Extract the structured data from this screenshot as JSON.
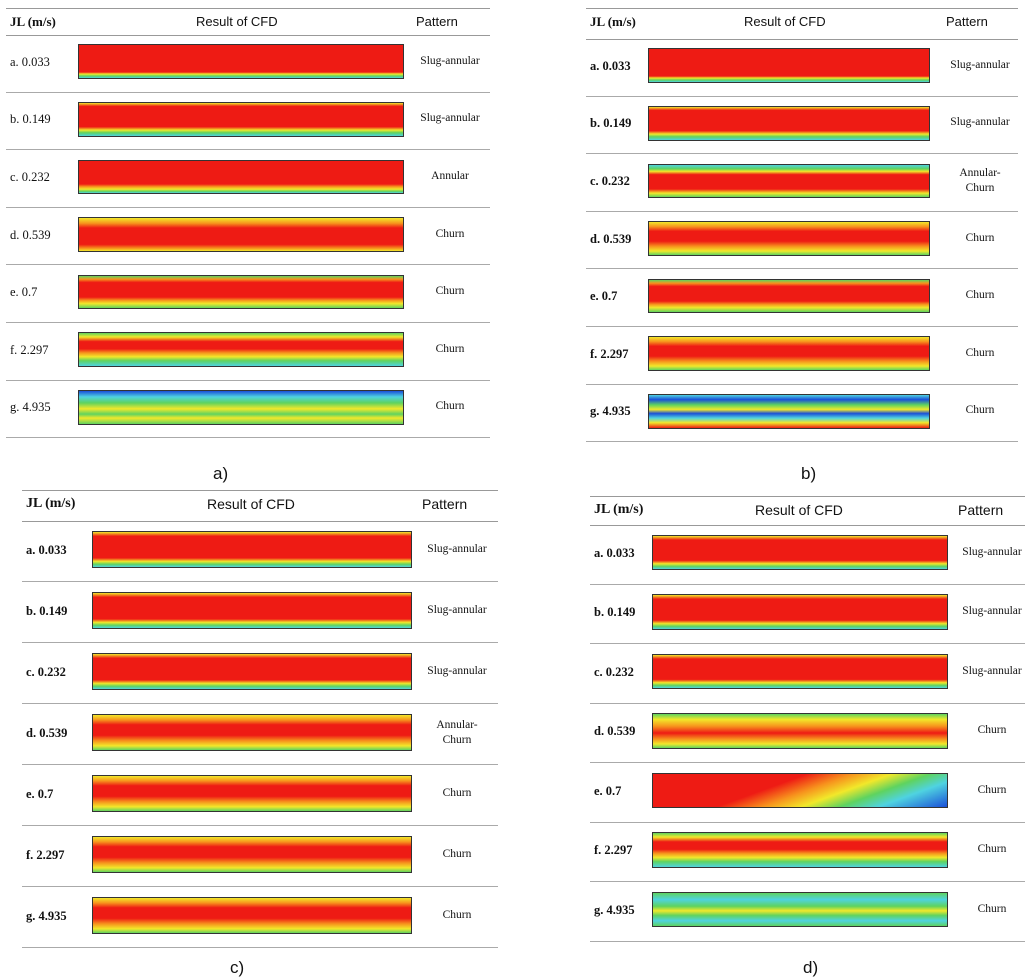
{
  "colors": {
    "red": "#ee1b14",
    "orange": "#f7941d",
    "yellow": "#f2e82a",
    "green": "#5fd35f",
    "cyan": "#4fd3e0",
    "blue": "#1a4fd8"
  },
  "panels": [
    {
      "id": "a",
      "header": {
        "jl": "JL (m/s)",
        "result": "Result of CFD",
        "pattern": "Pattern"
      },
      "caption": "a)",
      "rows": [
        {
          "label": "a. 0.033",
          "pattern": "Slug-annular",
          "colormap": "slug-light"
        },
        {
          "label": "b. 0.149",
          "pattern": "Slug-annular",
          "colormap": "slug-edges"
        },
        {
          "label": "c. 0.232",
          "pattern": "Annular",
          "colormap": "annular"
        },
        {
          "label": "d. 0.539",
          "pattern": "Churn",
          "colormap": "churn-yellow-top"
        },
        {
          "label": "e. 0.7",
          "pattern": "Churn",
          "colormap": "churn-thin"
        },
        {
          "label": "f. 2.297",
          "pattern": "Churn",
          "colormap": "churn-green"
        },
        {
          "label": "g. 4.935",
          "pattern": "Churn",
          "colormap": "churn-blue"
        }
      ]
    },
    {
      "id": "b",
      "header": {
        "jl": "JL (m/s)",
        "result": "Result of CFD",
        "pattern": "Pattern"
      },
      "caption": "b)",
      "rows": [
        {
          "label": "a. 0.033",
          "pattern": "Slug-annular",
          "colormap": "slug-light"
        },
        {
          "label": "b. 0.149",
          "pattern": "Slug-annular",
          "colormap": "slug-edges"
        },
        {
          "label": "c. 0.232",
          "pattern": "Annular-\nChurn",
          "colormap": "annular-churn"
        },
        {
          "label": "d. 0.539",
          "pattern": "Churn",
          "colormap": "churn-orange"
        },
        {
          "label": "e. 0.7",
          "pattern": "Churn",
          "colormap": "churn-thin"
        },
        {
          "label": "f. 2.297",
          "pattern": "Churn",
          "colormap": "churn-orange"
        },
        {
          "label": "g. 4.935",
          "pattern": "Churn",
          "colormap": "churn-wave"
        }
      ]
    },
    {
      "id": "c",
      "header": {
        "jl": "JL (m/s)",
        "result": "Result of CFD",
        "pattern": "Pattern"
      },
      "caption": "c)",
      "rows": [
        {
          "label": "a. 0.033",
          "pattern": "Slug-annular",
          "colormap": "slug-bubbles"
        },
        {
          "label": "b. 0.149",
          "pattern": "Slug-annular",
          "colormap": "slug-bubbles"
        },
        {
          "label": "c. 0.232",
          "pattern": "Slug-annular",
          "colormap": "slug-bubbles"
        },
        {
          "label": "d. 0.539",
          "pattern": "Annular-\nChurn",
          "colormap": "churn-orange"
        },
        {
          "label": "e. 0.7",
          "pattern": "Churn",
          "colormap": "churn-orange"
        },
        {
          "label": "f. 2.297",
          "pattern": "Churn",
          "colormap": "churn-orange"
        },
        {
          "label": "g. 4.935",
          "pattern": "Churn",
          "colormap": "churn-orange"
        }
      ]
    },
    {
      "id": "d",
      "header": {
        "jl": "JL (m/s)",
        "result": "Result of CFD",
        "pattern": "Pattern"
      },
      "caption": "d)",
      "rows": [
        {
          "label": "a. 0.033",
          "pattern": "Slug-annular",
          "colormap": "slug-bubbles"
        },
        {
          "label": "b. 0.149",
          "pattern": "Slug-annular",
          "colormap": "slug-bubbles"
        },
        {
          "label": "c. 0.232",
          "pattern": "Slug-annular",
          "colormap": "slug-bubbles"
        },
        {
          "label": "d. 0.539",
          "pattern": "Churn",
          "colormap": "churn-yellow"
        },
        {
          "label": "e. 0.7",
          "pattern": "Churn",
          "colormap": "churn-diag"
        },
        {
          "label": "f. 2.297",
          "pattern": "Churn",
          "colormap": "churn-green"
        },
        {
          "label": "g. 4.935",
          "pattern": "Churn",
          "colormap": "churn-allgreen"
        }
      ]
    }
  ]
}
